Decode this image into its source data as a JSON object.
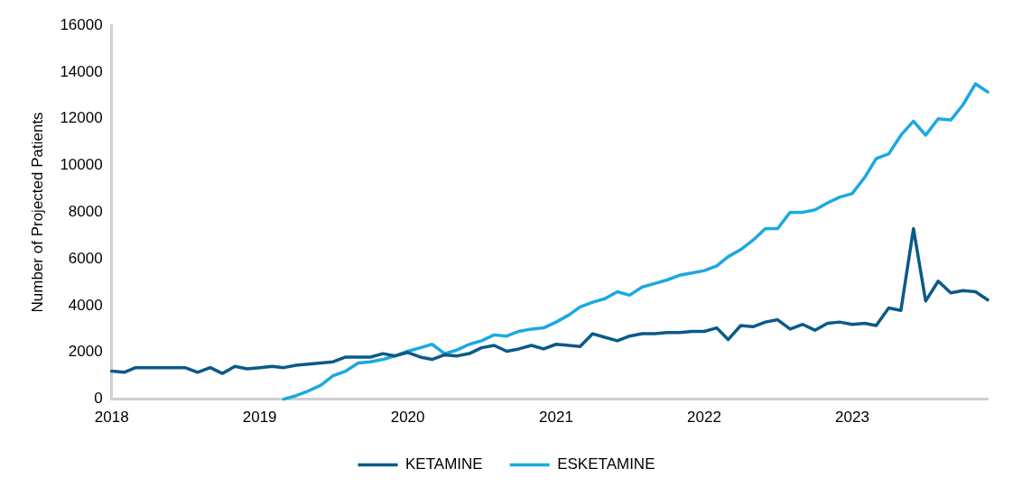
{
  "chart_data": {
    "type": "line",
    "ylabel": "Number of Projected Patients",
    "x": [
      "2018-01",
      "2018-02",
      "2018-03",
      "2018-04",
      "2018-05",
      "2018-06",
      "2018-07",
      "2018-08",
      "2018-09",
      "2018-10",
      "2018-11",
      "2018-12",
      "2019-01",
      "2019-02",
      "2019-03",
      "2019-04",
      "2019-05",
      "2019-06",
      "2019-07",
      "2019-08",
      "2019-09",
      "2019-10",
      "2019-11",
      "2019-12",
      "2020-01",
      "2020-02",
      "2020-03",
      "2020-04",
      "2020-05",
      "2020-06",
      "2020-07",
      "2020-08",
      "2020-09",
      "2020-10",
      "2020-11",
      "2020-12",
      "2021-01",
      "2021-02",
      "2021-03",
      "2021-04",
      "2021-05",
      "2021-06",
      "2021-07",
      "2021-08",
      "2021-09",
      "2021-10",
      "2021-11",
      "2021-12",
      "2022-01",
      "2022-02",
      "2022-03",
      "2022-04",
      "2022-05",
      "2022-06",
      "2022-07",
      "2022-08",
      "2022-09",
      "2022-10",
      "2022-11",
      "2022-12",
      "2023-01",
      "2023-02",
      "2023-03",
      "2023-04",
      "2023-05",
      "2023-06",
      "2023-07",
      "2023-08",
      "2023-09",
      "2023-10",
      "2023-11",
      "2023-12"
    ],
    "series": [
      {
        "name": "KETAMINE",
        "color": "#0b5a87",
        "values": [
          1200,
          1150,
          1350,
          1350,
          1350,
          1350,
          1350,
          1150,
          1350,
          1100,
          1400,
          1300,
          1350,
          1400,
          1350,
          1450,
          1500,
          1550,
          1600,
          1800,
          1800,
          1800,
          1950,
          1850,
          2000,
          1800,
          1700,
          1900,
          1850,
          1950,
          2200,
          2300,
          2050,
          2150,
          2300,
          2150,
          2350,
          2300,
          2250,
          2800,
          2650,
          2500,
          2700,
          2800,
          2800,
          2850,
          2850,
          2900,
          2900,
          3050,
          2550,
          3150,
          3100,
          3300,
          3400,
          3000,
          3200,
          2950,
          3250,
          3300,
          3200,
          3250,
          3150,
          3900,
          3800,
          7300,
          4200,
          5050,
          4550,
          4650,
          4600,
          4250
        ]
      },
      {
        "name": "ESKETAMINE",
        "color": "#1ba9e1",
        "values": [
          null,
          null,
          null,
          null,
          null,
          null,
          null,
          null,
          null,
          null,
          null,
          null,
          null,
          null,
          0,
          150,
          350,
          600,
          1000,
          1200,
          1550,
          1600,
          1700,
          1850,
          2050,
          2200,
          2350,
          1950,
          2100,
          2350,
          2500,
          2750,
          2700,
          2900,
          3000,
          3050,
          3300,
          3600,
          3950,
          4150,
          4300,
          4600,
          4450,
          4800,
          4950,
          5100,
          5300,
          5400,
          5500,
          5700,
          6100,
          6400,
          6800,
          7300,
          7300,
          8000,
          8000,
          8100,
          8400,
          8650,
          8800,
          9500,
          10300,
          10500,
          11300,
          11900,
          11300,
          12000,
          11950,
          12600,
          13500,
          13150
        ]
      }
    ],
    "xlim": [
      "2018-01",
      "2023-12"
    ],
    "xticks": [
      {
        "value": "2018-01",
        "label": "2018"
      },
      {
        "value": "2019-01",
        "label": "2019"
      },
      {
        "value": "2020-01",
        "label": "2020"
      },
      {
        "value": "2021-01",
        "label": "2021"
      },
      {
        "value": "2022-01",
        "label": "2022"
      },
      {
        "value": "2023-01",
        "label": "2023"
      }
    ],
    "ylim": [
      0,
      16000
    ],
    "yticks": [
      0,
      2000,
      4000,
      6000,
      8000,
      10000,
      12000,
      14000,
      16000
    ],
    "grid": false,
    "legend": "bottom",
    "marker": "none",
    "line_style": "solid"
  }
}
